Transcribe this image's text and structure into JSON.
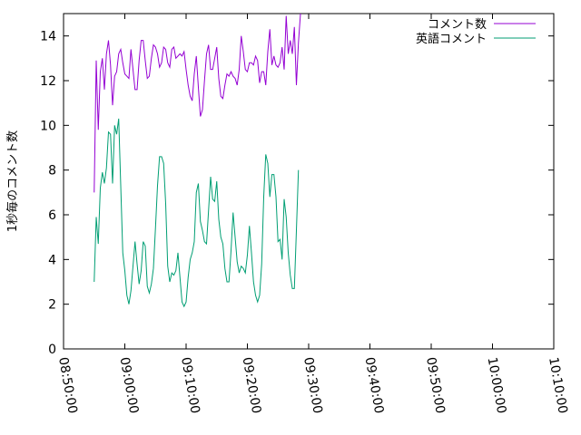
{
  "chart_data": {
    "type": "line",
    "title": "",
    "xlabel": "",
    "ylabel": "1秒毎のコメント数",
    "xlim": [
      "08:50:00",
      "10:10:00"
    ],
    "ylim": [
      0,
      15
    ],
    "x_ticks": [
      "08:50:00",
      "09:00:00",
      "09:10:00",
      "09:20:00",
      "09:30:00",
      "09:40:00",
      "09:50:00",
      "10:00:00",
      "10:10:00"
    ],
    "y_ticks": [
      0,
      2,
      4,
      6,
      8,
      10,
      12,
      14
    ],
    "legend_position": "top-right",
    "grid": false,
    "series": [
      {
        "name": "コメント数",
        "color": "#9400d3",
        "points": [
          [
            "08:55:00",
            7.0
          ],
          [
            "08:55:20",
            12.9
          ],
          [
            "08:55:40",
            9.8
          ],
          [
            "08:56:00",
            12.4
          ],
          [
            "08:56:20",
            13.0
          ],
          [
            "08:56:40",
            11.6
          ],
          [
            "08:57:00",
            13.2
          ],
          [
            "08:57:20",
            13.8
          ],
          [
            "08:57:40",
            12.7
          ],
          [
            "08:58:00",
            10.9
          ],
          [
            "08:58:20",
            12.2
          ],
          [
            "08:58:40",
            12.4
          ],
          [
            "08:59:00",
            13.2
          ],
          [
            "08:59:20",
            13.4
          ],
          [
            "08:59:40",
            12.8
          ],
          [
            "09:00:00",
            12.3
          ],
          [
            "09:00:20",
            12.2
          ],
          [
            "09:00:40",
            12.1
          ],
          [
            "09:01:00",
            13.4
          ],
          [
            "09:01:20",
            12.5
          ],
          [
            "09:01:40",
            11.6
          ],
          [
            "09:02:00",
            11.6
          ],
          [
            "09:02:20",
            12.9
          ],
          [
            "09:02:40",
            13.8
          ],
          [
            "09:03:00",
            13.8
          ],
          [
            "09:03:20",
            12.9
          ],
          [
            "09:03:40",
            12.1
          ],
          [
            "09:04:00",
            12.2
          ],
          [
            "09:04:20",
            13.0
          ],
          [
            "09:04:40",
            13.6
          ],
          [
            "09:05:00",
            13.5
          ],
          [
            "09:05:20",
            13.2
          ],
          [
            "09:05:40",
            12.6
          ],
          [
            "09:06:00",
            12.8
          ],
          [
            "09:06:20",
            13.5
          ],
          [
            "09:06:40",
            13.4
          ],
          [
            "09:07:00",
            12.8
          ],
          [
            "09:07:20",
            12.6
          ],
          [
            "09:07:40",
            13.4
          ],
          [
            "09:08:00",
            13.5
          ],
          [
            "09:08:20",
            13.0
          ],
          [
            "09:08:40",
            13.1
          ],
          [
            "09:09:00",
            13.2
          ],
          [
            "09:09:20",
            13.1
          ],
          [
            "09:09:40",
            13.3
          ],
          [
            "09:10:00",
            12.5
          ],
          [
            "09:10:20",
            11.8
          ],
          [
            "09:10:40",
            11.3
          ],
          [
            "09:11:00",
            11.1
          ],
          [
            "09:11:20",
            12.3
          ],
          [
            "09:11:40",
            13.1
          ],
          [
            "09:12:00",
            11.7
          ],
          [
            "09:12:20",
            10.4
          ],
          [
            "09:12:40",
            10.7
          ],
          [
            "09:13:00",
            12.0
          ],
          [
            "09:13:20",
            13.2
          ],
          [
            "09:13:40",
            13.6
          ],
          [
            "09:14:00",
            12.5
          ],
          [
            "09:14:20",
            12.5
          ],
          [
            "09:14:40",
            13.0
          ],
          [
            "09:15:00",
            13.5
          ],
          [
            "09:15:20",
            12.1
          ],
          [
            "09:15:40",
            11.3
          ],
          [
            "09:16:00",
            11.2
          ],
          [
            "09:16:20",
            11.8
          ],
          [
            "09:16:40",
            12.3
          ],
          [
            "09:17:00",
            12.2
          ],
          [
            "09:17:20",
            12.4
          ],
          [
            "09:17:40",
            12.2
          ],
          [
            "09:18:00",
            12.1
          ],
          [
            "09:18:20",
            11.8
          ],
          [
            "09:18:40",
            12.5
          ],
          [
            "09:19:00",
            14.0
          ],
          [
            "09:19:20",
            13.3
          ],
          [
            "09:19:40",
            12.5
          ],
          [
            "09:20:00",
            12.4
          ],
          [
            "09:20:20",
            12.8
          ],
          [
            "09:20:40",
            12.8
          ],
          [
            "09:21:00",
            12.7
          ],
          [
            "09:21:20",
            13.1
          ],
          [
            "09:21:40",
            12.9
          ],
          [
            "09:22:00",
            11.9
          ],
          [
            "09:22:20",
            12.4
          ],
          [
            "09:22:40",
            12.4
          ],
          [
            "09:23:00",
            11.8
          ],
          [
            "09:23:20",
            13.3
          ],
          [
            "09:23:40",
            14.3
          ],
          [
            "09:24:00",
            12.7
          ],
          [
            "09:24:20",
            13.1
          ],
          [
            "09:24:40",
            12.7
          ],
          [
            "09:25:00",
            12.6
          ],
          [
            "09:25:20",
            12.8
          ],
          [
            "09:25:40",
            13.5
          ],
          [
            "09:26:00",
            12.5
          ],
          [
            "09:26:20",
            14.9
          ],
          [
            "09:26:40",
            13.2
          ],
          [
            "09:27:00",
            13.8
          ],
          [
            "09:27:20",
            13.2
          ],
          [
            "09:27:40",
            14.4
          ],
          [
            "09:28:00",
            11.8
          ],
          [
            "09:28:20",
            13.7
          ],
          [
            "09:28:40",
            15.0
          ]
        ]
      },
      {
        "name": "英語コメント",
        "color": "#009e73",
        "points": [
          [
            "08:55:00",
            3.0
          ],
          [
            "08:55:20",
            5.9
          ],
          [
            "08:55:40",
            4.7
          ],
          [
            "08:56:00",
            7.2
          ],
          [
            "08:56:20",
            7.9
          ],
          [
            "08:56:40",
            7.4
          ],
          [
            "08:57:00",
            8.1
          ],
          [
            "08:57:20",
            9.7
          ],
          [
            "08:57:40",
            9.6
          ],
          [
            "08:58:00",
            7.4
          ],
          [
            "08:58:20",
            10.0
          ],
          [
            "08:58:40",
            9.6
          ],
          [
            "08:59:00",
            10.3
          ],
          [
            "08:59:20",
            7.3
          ],
          [
            "08:59:40",
            4.3
          ],
          [
            "09:00:00",
            3.5
          ],
          [
            "09:00:20",
            2.4
          ],
          [
            "09:00:40",
            2.0
          ],
          [
            "09:01:00",
            2.6
          ],
          [
            "09:01:20",
            3.7
          ],
          [
            "09:01:40",
            4.8
          ],
          [
            "09:02:00",
            3.8
          ],
          [
            "09:02:20",
            2.9
          ],
          [
            "09:02:40",
            3.5
          ],
          [
            "09:03:00",
            4.8
          ],
          [
            "09:03:20",
            4.6
          ],
          [
            "09:03:40",
            2.8
          ],
          [
            "09:04:00",
            2.5
          ],
          [
            "09:04:20",
            2.9
          ],
          [
            "09:04:40",
            3.6
          ],
          [
            "09:05:00",
            5.4
          ],
          [
            "09:05:20",
            7.3
          ],
          [
            "09:05:40",
            8.6
          ],
          [
            "09:06:00",
            8.6
          ],
          [
            "09:06:20",
            8.3
          ],
          [
            "09:06:40",
            6.5
          ],
          [
            "09:07:00",
            3.7
          ],
          [
            "09:07:20",
            3.0
          ],
          [
            "09:07:40",
            3.4
          ],
          [
            "09:08:00",
            3.3
          ],
          [
            "09:08:20",
            3.5
          ],
          [
            "09:08:40",
            4.3
          ],
          [
            "09:09:00",
            3.2
          ],
          [
            "09:09:20",
            2.1
          ],
          [
            "09:09:40",
            1.9
          ],
          [
            "09:10:00",
            2.1
          ],
          [
            "09:10:20",
            3.2
          ],
          [
            "09:10:40",
            4.0
          ],
          [
            "09:11:00",
            4.3
          ],
          [
            "09:11:20",
            4.8
          ],
          [
            "09:11:40",
            7.0
          ],
          [
            "09:12:00",
            7.4
          ],
          [
            "09:12:20",
            5.7
          ],
          [
            "09:12:40",
            5.3
          ],
          [
            "09:13:00",
            4.8
          ],
          [
            "09:13:20",
            4.7
          ],
          [
            "09:13:40",
            6.2
          ],
          [
            "09:14:00",
            7.7
          ],
          [
            "09:14:20",
            6.7
          ],
          [
            "09:14:40",
            6.6
          ],
          [
            "09:15:00",
            7.5
          ],
          [
            "09:15:20",
            5.8
          ],
          [
            "09:15:40",
            5.0
          ],
          [
            "09:16:00",
            4.7
          ],
          [
            "09:16:20",
            3.6
          ],
          [
            "09:16:40",
            3.0
          ],
          [
            "09:17:00",
            3.0
          ],
          [
            "09:17:20",
            4.4
          ],
          [
            "09:17:40",
            6.1
          ],
          [
            "09:18:00",
            5.0
          ],
          [
            "09:18:20",
            3.9
          ],
          [
            "09:18:40",
            3.4
          ],
          [
            "09:19:00",
            3.7
          ],
          [
            "09:19:20",
            3.6
          ],
          [
            "09:19:40",
            3.4
          ],
          [
            "09:20:00",
            4.2
          ],
          [
            "09:20:20",
            5.5
          ],
          [
            "09:20:40",
            4.3
          ],
          [
            "09:21:00",
            3.0
          ],
          [
            "09:21:20",
            2.4
          ],
          [
            "09:21:40",
            2.1
          ],
          [
            "09:22:00",
            2.4
          ],
          [
            "09:22:20",
            3.8
          ],
          [
            "09:22:40",
            6.8
          ],
          [
            "09:23:00",
            8.7
          ],
          [
            "09:23:20",
            8.3
          ],
          [
            "09:23:40",
            6.8
          ],
          [
            "09:24:00",
            7.8
          ],
          [
            "09:24:20",
            7.8
          ],
          [
            "09:24:40",
            6.8
          ],
          [
            "09:25:00",
            4.8
          ],
          [
            "09:25:20",
            4.9
          ],
          [
            "09:25:40",
            4.0
          ],
          [
            "09:26:00",
            6.7
          ],
          [
            "09:26:20",
            5.9
          ],
          [
            "09:26:40",
            4.3
          ],
          [
            "09:27:00",
            3.3
          ],
          [
            "09:27:20",
            2.7
          ],
          [
            "09:27:40",
            2.7
          ],
          [
            "09:28:00",
            5.3
          ],
          [
            "09:28:20",
            8.0
          ]
        ]
      }
    ]
  }
}
